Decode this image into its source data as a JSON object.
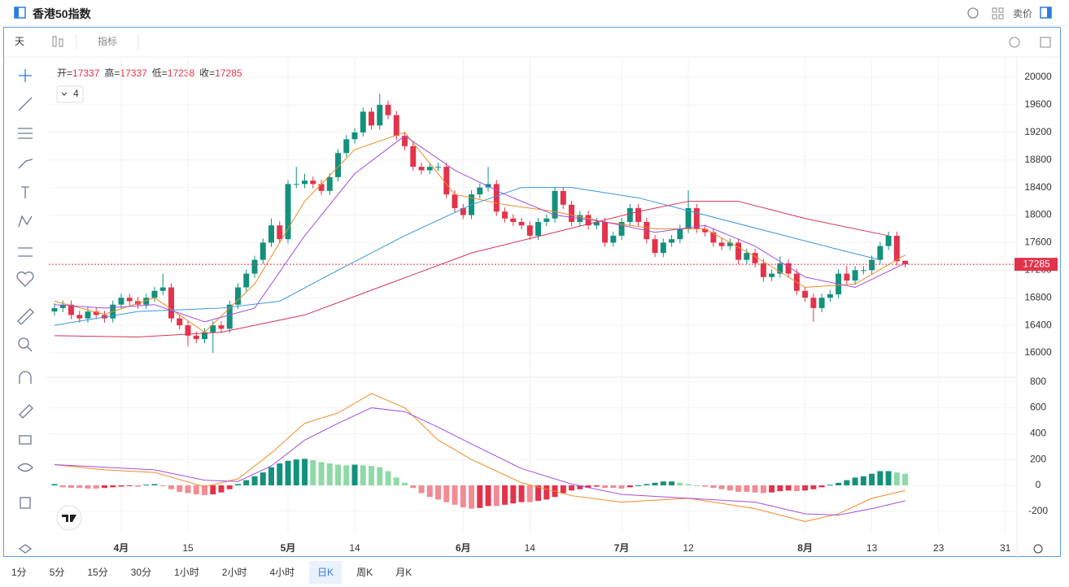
{
  "header": {
    "title": "香港50指数",
    "side": "卖价"
  },
  "toolbar": {
    "interval": "天",
    "indicators": "指标"
  },
  "timeframes": [
    {
      "label": "1分",
      "active": false
    },
    {
      "label": "5分",
      "active": false
    },
    {
      "label": "15分",
      "active": false
    },
    {
      "label": "30分",
      "active": false
    },
    {
      "label": "1小时",
      "active": false
    },
    {
      "label": "2小时",
      "active": false
    },
    {
      "label": "4小时",
      "active": false
    },
    {
      "label": "日K",
      "active": true
    },
    {
      "label": "周K",
      "active": false
    },
    {
      "label": "月K",
      "active": false
    }
  ],
  "chart_data": [
    {
      "type": "candlestick",
      "legend_labels": [
        "开=",
        "高=",
        "低=",
        "收="
      ],
      "indicator_count": 4,
      "up_color": "#12917c",
      "down_color": "#e3334b",
      "grid": true,
      "xlim": [
        -0.68,
        115.4
      ],
      "xticks": [
        {
          "value": 8,
          "label": "4月"
        },
        {
          "value": 16,
          "label": "15"
        },
        {
          "value": 28,
          "label": "5月"
        },
        {
          "value": 36,
          "label": "14"
        },
        {
          "value": 49,
          "label": "6月"
        },
        {
          "value": 57,
          "label": "14"
        },
        {
          "value": 68,
          "label": "7月"
        },
        {
          "value": 76,
          "label": "12"
        },
        {
          "value": 90,
          "label": "8月"
        },
        {
          "value": 98,
          "label": "13"
        },
        {
          "value": 106,
          "label": "23"
        },
        {
          "value": 114,
          "label": "31"
        }
      ],
      "ylim": [
        15670,
        20236
      ],
      "yticks": [
        16000,
        16400,
        16800,
        17200,
        17600,
        18000,
        18400,
        18800,
        19200,
        19600,
        20000
      ],
      "ohlc": [
        [
          16600,
          16720,
          16540,
          16650
        ],
        [
          16650,
          16760,
          16590,
          16700
        ],
        [
          16700,
          16760,
          16490,
          16550
        ],
        [
          16550,
          16610,
          16440,
          16500
        ],
        [
          16500,
          16660,
          16440,
          16600
        ],
        [
          16600,
          16660,
          16490,
          16550
        ],
        [
          16550,
          16610,
          16440,
          16500
        ],
        [
          16500,
          16760,
          16440,
          16700
        ],
        [
          16700,
          16860,
          16640,
          16800
        ],
        [
          16800,
          16860,
          16690,
          16750
        ],
        [
          16750,
          16810,
          16640,
          16700
        ],
        [
          16700,
          16860,
          16640,
          16800
        ],
        [
          16800,
          16960,
          16740,
          16900
        ],
        [
          16900,
          17150,
          16840,
          16950
        ],
        [
          16950,
          17010,
          16440,
          16500
        ],
        [
          16500,
          16560,
          16340,
          16400
        ],
        [
          16400,
          16460,
          16100,
          16250
        ],
        [
          16250,
          16310,
          16140,
          16200
        ],
        [
          16200,
          16360,
          16140,
          16300
        ],
        [
          16300,
          16460,
          16000,
          16400
        ],
        [
          16400,
          16460,
          16290,
          16350
        ],
        [
          16350,
          16760,
          16290,
          16700
        ],
        [
          16700,
          17010,
          16640,
          16950
        ],
        [
          16950,
          17210,
          16890,
          17150
        ],
        [
          17150,
          17410,
          17090,
          17350
        ],
        [
          17350,
          17660,
          17290,
          17600
        ],
        [
          17600,
          17950,
          17540,
          17850
        ],
        [
          17850,
          17910,
          17590,
          17650
        ],
        [
          17650,
          18510,
          17590,
          18450
        ],
        [
          18450,
          18700,
          18390,
          18450
        ],
        [
          18450,
          18600,
          18390,
          18500
        ],
        [
          18500,
          18560,
          18390,
          18450
        ],
        [
          18450,
          18510,
          18290,
          18350
        ],
        [
          18350,
          18610,
          18290,
          18550
        ],
        [
          18550,
          18960,
          18490,
          18900
        ],
        [
          18900,
          19160,
          18840,
          19100
        ],
        [
          19100,
          19260,
          19040,
          19200
        ],
        [
          19200,
          19560,
          19140,
          19500
        ],
        [
          19500,
          19560,
          19240,
          19300
        ],
        [
          19300,
          19760,
          19240,
          19600
        ],
        [
          19600,
          19660,
          19390,
          19450
        ],
        [
          19450,
          19510,
          19090,
          19150
        ],
        [
          19150,
          19210,
          18940,
          19000
        ],
        [
          19000,
          19060,
          18640,
          18700
        ],
        [
          18700,
          18760,
          18590,
          18650
        ],
        [
          18650,
          18760,
          18590,
          18700
        ],
        [
          18700,
          18760,
          18640,
          18700
        ],
        [
          18700,
          18760,
          18240,
          18300
        ],
        [
          18300,
          18360,
          18040,
          18100
        ],
        [
          18100,
          18160,
          17940,
          18000
        ],
        [
          18000,
          18360,
          17940,
          18300
        ],
        [
          18300,
          18460,
          18240,
          18400
        ],
        [
          18400,
          18700,
          18340,
          18450
        ],
        [
          18450,
          18510,
          17990,
          18050
        ],
        [
          18050,
          18110,
          17890,
          17950
        ],
        [
          17950,
          18010,
          17840,
          17900
        ],
        [
          17900,
          17960,
          17790,
          17850
        ],
        [
          17850,
          17910,
          17640,
          17700
        ],
        [
          17700,
          17960,
          17640,
          17900
        ],
        [
          17900,
          18010,
          17840,
          17950
        ],
        [
          17950,
          18410,
          17890,
          18350
        ],
        [
          18350,
          18410,
          18090,
          18150
        ],
        [
          18150,
          18210,
          17840,
          17900
        ],
        [
          17900,
          18060,
          17840,
          18000
        ],
        [
          18000,
          18060,
          17790,
          17850
        ],
        [
          17850,
          17960,
          17790,
          17900
        ],
        [
          17900,
          17960,
          17540,
          17600
        ],
        [
          17600,
          17760,
          17540,
          17700
        ],
        [
          17700,
          17960,
          17640,
          17900
        ],
        [
          17900,
          18160,
          17840,
          18100
        ],
        [
          18100,
          18160,
          17840,
          17900
        ],
        [
          17900,
          17960,
          17590,
          17650
        ],
        [
          17650,
          17710,
          17390,
          17450
        ],
        [
          17450,
          17660,
          17390,
          17600
        ],
        [
          17600,
          17710,
          17540,
          17650
        ],
        [
          17650,
          17860,
          17590,
          17800
        ],
        [
          17800,
          18360,
          17740,
          18100
        ],
        [
          18100,
          18160,
          17740,
          17800
        ],
        [
          17800,
          17860,
          17690,
          17750
        ],
        [
          17750,
          17810,
          17540,
          17600
        ],
        [
          17600,
          17660,
          17490,
          17550
        ],
        [
          17550,
          17660,
          17490,
          17600
        ],
        [
          17600,
          17660,
          17290,
          17350
        ],
        [
          17350,
          17510,
          17290,
          17450
        ],
        [
          17450,
          17510,
          17240,
          17300
        ],
        [
          17300,
          17360,
          17040,
          17100
        ],
        [
          17100,
          17210,
          17040,
          17150
        ],
        [
          17150,
          17400,
          17090,
          17300
        ],
        [
          17300,
          17360,
          17090,
          17150
        ],
        [
          17150,
          17210,
          16840,
          16900
        ],
        [
          16900,
          16960,
          16740,
          16800
        ],
        [
          16800,
          16860,
          16450,
          16650
        ],
        [
          16650,
          16860,
          16590,
          16800
        ],
        [
          16800,
          16910,
          16740,
          16850
        ],
        [
          16850,
          17210,
          16790,
          17150
        ],
        [
          17150,
          17260,
          16990,
          17050
        ],
        [
          17050,
          17260,
          16990,
          17200
        ],
        [
          17200,
          17260,
          17140,
          17200
        ],
        [
          17200,
          17410,
          17140,
          17350
        ],
        [
          17350,
          17610,
          17290,
          17550
        ],
        [
          17550,
          17760,
          17490,
          17700
        ],
        [
          17700,
          17760,
          17270,
          17330
        ],
        [
          17337,
          17337,
          17238,
          17285
        ]
      ],
      "lines": [
        {
          "color": "#f08a24",
          "x": [
            0,
            6,
            12,
            18,
            24,
            30,
            36,
            42,
            48,
            54,
            60,
            66,
            72,
            78,
            84,
            90,
            96,
            102
          ],
          "values": [
            16750,
            16560,
            16800,
            16300,
            17000,
            18200,
            18950,
            19200,
            18300,
            18150,
            18050,
            17900,
            17800,
            17800,
            17400,
            16950,
            17000,
            17420
          ]
        },
        {
          "color": "#a24fe0",
          "x": [
            0,
            6,
            12,
            18,
            24,
            30,
            36,
            42,
            48,
            54,
            60,
            66,
            72,
            78,
            84,
            90,
            96,
            102
          ],
          "values": [
            16700,
            16650,
            16700,
            16450,
            16650,
            17700,
            18600,
            19150,
            18650,
            18300,
            18000,
            17900,
            17750,
            17850,
            17550,
            17100,
            16950,
            17300
          ]
        },
        {
          "color": "#3a96dd",
          "x": [
            0,
            10,
            20,
            27,
            34,
            42,
            50,
            56,
            62,
            70,
            78,
            86,
            94,
            99
          ],
          "values": [
            16400,
            16600,
            16650,
            16750,
            17200,
            17700,
            18150,
            18400,
            18400,
            18250,
            18000,
            17750,
            17500,
            17350
          ]
        },
        {
          "color": "#d4325a",
          "x": [
            0,
            10,
            20,
            30,
            40,
            50,
            60,
            70,
            76,
            82,
            90,
            100
          ],
          "values": [
            16250,
            16230,
            16300,
            16550,
            17000,
            17450,
            17750,
            18050,
            18200,
            18200,
            17950,
            17700
          ]
        }
      ]
    },
    {
      "type": "macd",
      "ylim": [
        -365,
        830
      ],
      "yticks": [
        -200,
        0,
        200,
        400,
        600,
        800
      ],
      "up_color": "#12917c",
      "up_light_color": "#8ed9a6",
      "down_color": "#e3334b",
      "down_light_color": "#f28b94",
      "histogram": [
        10,
        -15,
        -20,
        -20,
        -25,
        -25,
        -20,
        -15,
        -10,
        -5,
        -10,
        5,
        10,
        -5,
        -30,
        -50,
        -60,
        -70,
        -75,
        -70,
        -55,
        -30,
        10,
        40,
        70,
        100,
        140,
        170,
        190,
        200,
        205,
        195,
        180,
        170,
        160,
        155,
        160,
        155,
        150,
        140,
        110,
        60,
        20,
        -20,
        -60,
        -90,
        -110,
        -130,
        -150,
        -170,
        -180,
        -175,
        -160,
        -160,
        -150,
        -140,
        -130,
        -130,
        -120,
        -110,
        -90,
        -60,
        -40,
        -30,
        -20,
        -10,
        -20,
        -20,
        -25,
        -15,
        0,
        10,
        20,
        30,
        30,
        20,
        10,
        0,
        -10,
        -20,
        -30,
        -40,
        -50,
        -50,
        -55,
        -60,
        -55,
        -45,
        -40,
        -45,
        -40,
        -30,
        -15,
        5,
        20,
        40,
        60,
        70,
        90,
        110,
        110,
        100,
        90
      ],
      "lines": [
        {
          "color": "#f08a24",
          "x": [
            0,
            6,
            12,
            18,
            22,
            26,
            30,
            34,
            38,
            42,
            46,
            50,
            56,
            62,
            68,
            76,
            84,
            90,
            94,
            98,
            102
          ],
          "values": [
            160,
            120,
            100,
            -10,
            50,
            250,
            480,
            560,
            710,
            600,
            350,
            200,
            20,
            -80,
            -130,
            -100,
            -180,
            -280,
            -220,
            -100,
            -40
          ]
        },
        {
          "color": "#a24fe0",
          "x": [
            0,
            6,
            12,
            18,
            22,
            26,
            30,
            34,
            38,
            42,
            46,
            50,
            56,
            62,
            68,
            76,
            84,
            90,
            94,
            98,
            102
          ],
          "values": [
            160,
            140,
            120,
            40,
            30,
            150,
            350,
            480,
            600,
            570,
            450,
            320,
            130,
            10,
            -70,
            -100,
            -130,
            -220,
            -230,
            -180,
            -120
          ]
        }
      ]
    }
  ]
}
